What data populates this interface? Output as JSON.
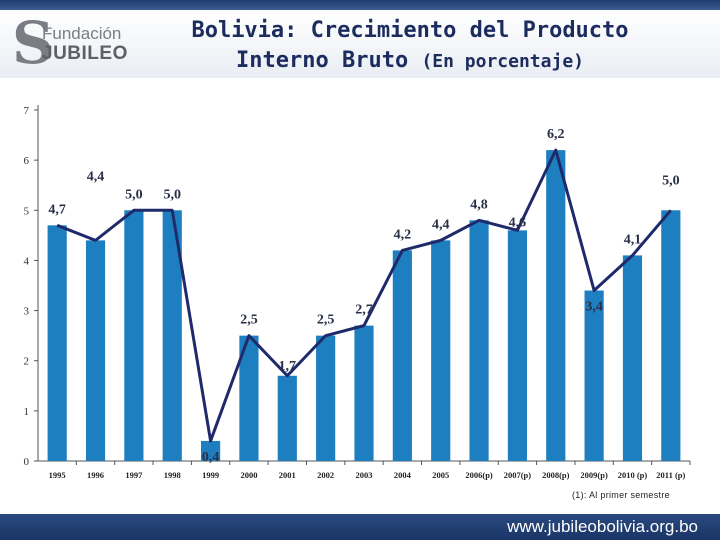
{
  "header": {
    "logo_text_line1": "Fundación",
    "logo_text_line2": "JUBILEO",
    "title_line1": "Bolivia: Crecimiento del Producto",
    "title_line2_main": "Interno Bruto",
    "title_line2_sub": "(En porcentaje)"
  },
  "chart_data": {
    "type": "bar",
    "title": "Bolivia: Crecimiento del Producto Interno Bruto (En porcentaje)",
    "xlabel": "",
    "ylabel": "",
    "categories": [
      "1995",
      "1996",
      "1997",
      "1998",
      "1999",
      "2000",
      "2001",
      "2002",
      "2003",
      "2004",
      "2005",
      "2006(p)",
      "2007(p)",
      "2008(p)",
      "2009(p)",
      "2010 (p)",
      "2011 (p)"
    ],
    "series": [
      {
        "values": [
          4.7,
          4.4,
          5.0,
          5.0,
          0.4,
          2.5,
          1.7,
          2.5,
          2.7,
          4.2,
          4.4,
          4.8,
          4.6,
          6.2,
          3.4,
          4.1,
          5.0
        ]
      }
    ],
    "data_labels": [
      "4,7",
      "4,4",
      "5,0",
      "5,0",
      "0,4",
      "2,5",
      "1,7",
      "2,5",
      "2,7",
      "4,2",
      "4,4",
      "4,8",
      "4,6",
      "6,2",
      "3,4",
      "4,1",
      "5,0"
    ],
    "line_overlay": true,
    "ylim": [
      0,
      7
    ],
    "yticks": [
      "0",
      "1",
      "2",
      "3",
      "4",
      "5",
      "6",
      "7"
    ],
    "grid": false,
    "legend": "none",
    "colors": {
      "bar": "#1e7fc0",
      "line": "#1f2a6b"
    }
  },
  "footnote": "(1): Al primer semestre",
  "footer": {
    "url": "www.jubileobolivia.org.bo"
  }
}
